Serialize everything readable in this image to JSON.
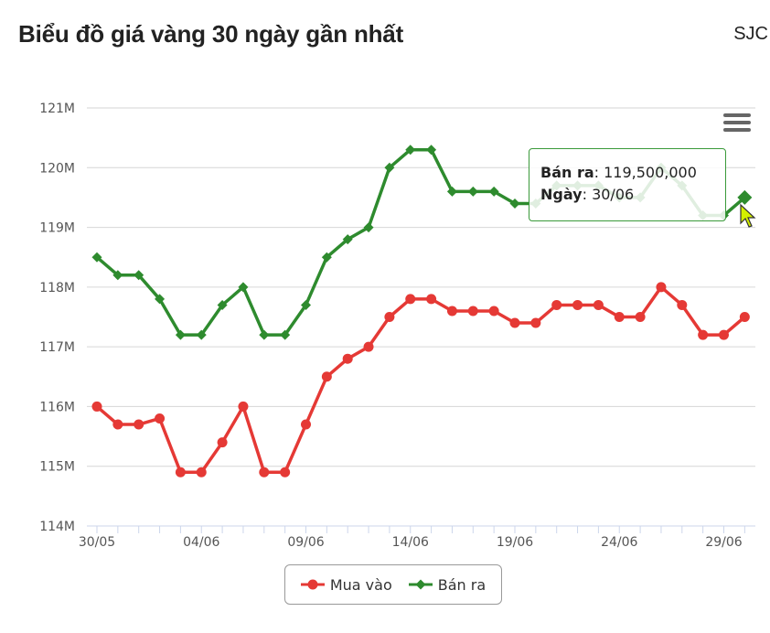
{
  "header": {
    "title": "Biểu đồ giá vàng 30 ngày gần nhất",
    "brand": "SJC"
  },
  "tooltip": {
    "series_label": "Bán ra",
    "value": "119,500,000",
    "date_label": "Ngày",
    "date": "30/06"
  },
  "chart_data": {
    "type": "line",
    "title": "Biểu đồ giá vàng 30 ngày gần nhất",
    "xlabel": "",
    "ylabel": "",
    "ylim": [
      114000000,
      121000000
    ],
    "yticks": [
      114000000,
      115000000,
      116000000,
      117000000,
      118000000,
      119000000,
      120000000,
      121000000
    ],
    "ytick_labels": [
      "114M",
      "115M",
      "116M",
      "117M",
      "118M",
      "119M",
      "120M",
      "121M"
    ],
    "x": [
      "30/05",
      "31/05",
      "01/06",
      "02/06",
      "03/06",
      "04/06",
      "05/06",
      "06/06",
      "07/06",
      "08/06",
      "09/06",
      "10/06",
      "11/06",
      "12/06",
      "13/06",
      "14/06",
      "15/06",
      "16/06",
      "17/06",
      "18/06",
      "19/06",
      "20/06",
      "21/06",
      "22/06",
      "23/06",
      "24/06",
      "25/06",
      "26/06",
      "27/06",
      "28/06",
      "29/06",
      "30/06"
    ],
    "xtick_labels": [
      "30/05",
      "04/06",
      "09/06",
      "14/06",
      "19/06",
      "24/06",
      "29/06"
    ],
    "grid": true,
    "legend_position": "bottom-center",
    "series": [
      {
        "name": "Mua vào",
        "color": "#e53935",
        "marker": "circle",
        "values": [
          116000000,
          115700000,
          115700000,
          115800000,
          114900000,
          114900000,
          115400000,
          116000000,
          114900000,
          114900000,
          115700000,
          116500000,
          116800000,
          117000000,
          117500000,
          117800000,
          117800000,
          117600000,
          117600000,
          117600000,
          117400000,
          117400000,
          117700000,
          117700000,
          117700000,
          117500000,
          117500000,
          118000000,
          117700000,
          117200000,
          117200000,
          117500000
        ]
      },
      {
        "name": "Bán ra",
        "color": "#2e8b2e",
        "marker": "diamond",
        "values": [
          118500000,
          118200000,
          118200000,
          117800000,
          117200000,
          117200000,
          117700000,
          118000000,
          117200000,
          117200000,
          117700000,
          118500000,
          118800000,
          119000000,
          120000000,
          120300000,
          120300000,
          119600000,
          119600000,
          119600000,
          119400000,
          119400000,
          119700000,
          119700000,
          119700000,
          119500000,
          119500000,
          120000000,
          119700000,
          119200000,
          119200000,
          119500000
        ]
      }
    ]
  }
}
